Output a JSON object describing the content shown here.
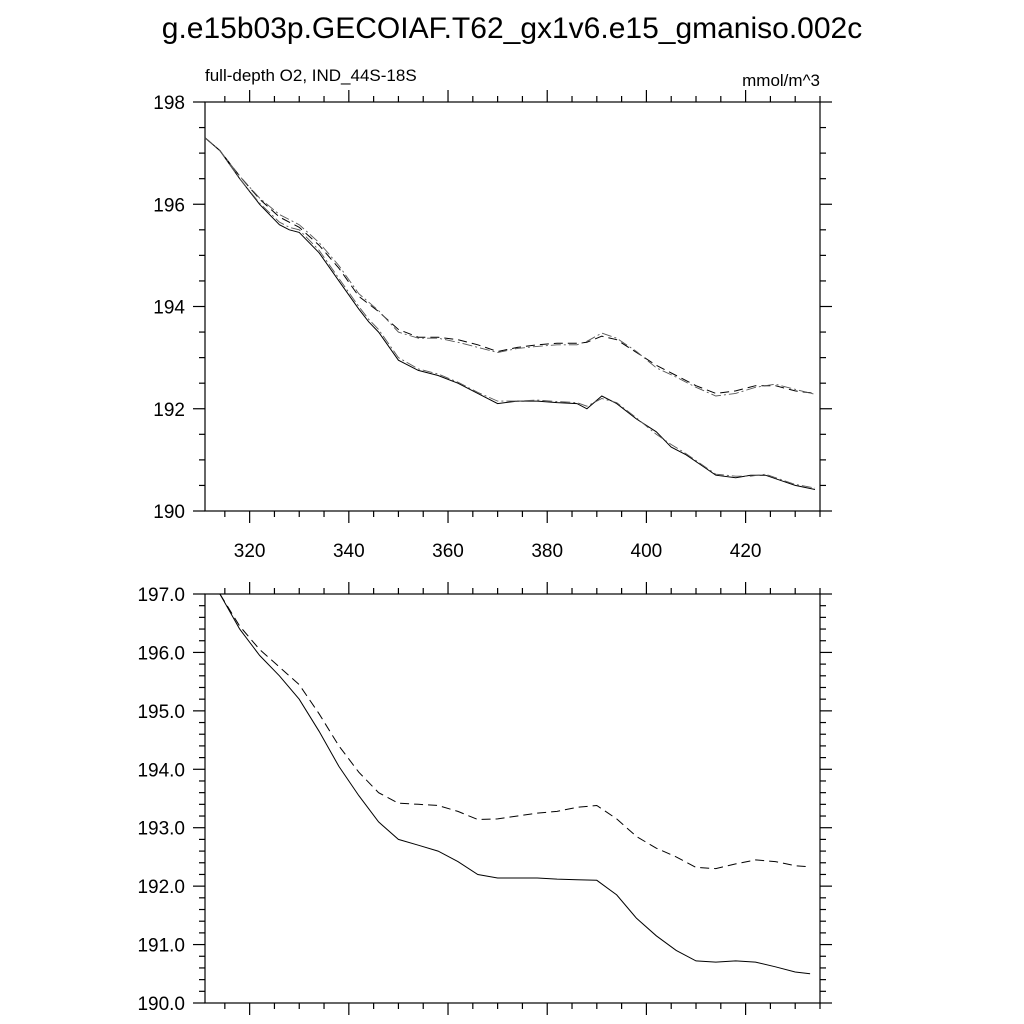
{
  "title": "g.e15b03p.GECOIAF.T62_gx1v6.e15_gmaniso.002c",
  "chart_data": [
    {
      "type": "line",
      "subtitle_left": "full-depth O2, IND_44S-18S",
      "subtitle_right": "mmol/m^3",
      "xlim": [
        311,
        435
      ],
      "ylim": [
        190,
        198
      ],
      "xticks": [
        320,
        340,
        360,
        380,
        400,
        420
      ],
      "xtick_labels": [
        "320",
        "340",
        "360",
        "380",
        "400",
        "420"
      ],
      "yticks": [
        190,
        192,
        194,
        196,
        198
      ],
      "ytick_labels": [
        "190",
        "192",
        "194",
        "196",
        "198"
      ],
      "series": [
        {
          "name": "lower-solid",
          "style": "solid",
          "x": [
            311,
            314,
            318,
            322,
            326,
            328,
            330,
            334,
            338,
            342,
            344,
            346,
            350,
            354,
            358,
            362,
            366,
            370,
            374,
            378,
            382,
            386,
            388,
            391,
            394,
            398,
            402,
            405,
            408,
            411,
            414,
            418,
            421,
            424,
            427,
            430,
            434
          ],
          "y": [
            197.3,
            197.05,
            196.5,
            196.0,
            195.6,
            195.5,
            195.45,
            195.05,
            194.5,
            193.95,
            193.7,
            193.5,
            192.95,
            192.75,
            192.65,
            192.5,
            192.3,
            192.1,
            192.15,
            192.15,
            192.12,
            192.1,
            192.0,
            192.25,
            192.1,
            191.8,
            191.55,
            191.25,
            191.1,
            190.9,
            190.7,
            190.65,
            190.7,
            190.7,
            190.6,
            190.5,
            190.42
          ]
        },
        {
          "name": "lower-dashdot",
          "style": "dashdot",
          "x": [
            311,
            314,
            318,
            322,
            326,
            328,
            330,
            334,
            338,
            342,
            344,
            346,
            350,
            354,
            358,
            362,
            366,
            370,
            374,
            378,
            382,
            386,
            388,
            391,
            394,
            398,
            402,
            405,
            408,
            411,
            414,
            418,
            421,
            424,
            427,
            430,
            434
          ],
          "y": [
            197.3,
            197.05,
            196.5,
            196.02,
            195.65,
            195.55,
            195.5,
            195.1,
            194.55,
            194.0,
            193.75,
            193.55,
            193.0,
            192.78,
            192.68,
            192.52,
            192.32,
            192.15,
            192.15,
            192.17,
            192.14,
            192.12,
            192.05,
            192.2,
            192.12,
            191.82,
            191.5,
            191.3,
            191.12,
            190.92,
            190.72,
            190.68,
            190.68,
            190.72,
            190.62,
            190.52,
            190.45
          ]
        },
        {
          "name": "upper-dashed",
          "style": "dashed",
          "x": [
            311,
            314,
            318,
            322,
            326,
            330,
            334,
            338,
            342,
            346,
            350,
            354,
            358,
            362,
            366,
            370,
            374,
            378,
            382,
            386,
            388,
            391,
            394,
            398,
            402,
            406,
            410,
            414,
            418,
            422,
            426,
            430,
            434
          ],
          "y": [
            197.3,
            197.05,
            196.55,
            196.1,
            195.75,
            195.55,
            195.2,
            194.75,
            194.2,
            193.9,
            193.55,
            193.4,
            193.4,
            193.35,
            193.25,
            193.12,
            193.2,
            193.25,
            193.28,
            193.28,
            193.3,
            193.42,
            193.35,
            193.1,
            192.85,
            192.65,
            192.45,
            192.3,
            192.35,
            192.45,
            192.45,
            192.35,
            192.3
          ]
        },
        {
          "name": "upper-dashdot",
          "style": "dashdot",
          "x": [
            311,
            314,
            318,
            322,
            326,
            330,
            334,
            338,
            342,
            346,
            350,
            354,
            358,
            362,
            366,
            370,
            374,
            378,
            382,
            386,
            388,
            391,
            394,
            398,
            402,
            406,
            410,
            414,
            418,
            422,
            426,
            430,
            434
          ],
          "y": [
            197.3,
            197.05,
            196.55,
            196.12,
            195.8,
            195.6,
            195.25,
            194.8,
            194.25,
            193.92,
            193.5,
            193.38,
            193.38,
            193.3,
            193.2,
            193.1,
            193.18,
            193.22,
            193.25,
            193.25,
            193.32,
            193.48,
            193.38,
            193.12,
            192.8,
            192.62,
            192.42,
            192.25,
            192.3,
            192.42,
            192.48,
            192.38,
            192.28
          ]
        }
      ]
    },
    {
      "type": "line",
      "xlim": [
        311,
        435
      ],
      "ylim": [
        190,
        197
      ],
      "xticks": [
        320,
        340,
        360,
        380,
        400,
        420
      ],
      "xtick_labels": [],
      "yticks": [
        190,
        191,
        192,
        193,
        194,
        195,
        196,
        197
      ],
      "ytick_labels": [
        "190.0",
        "191.0",
        "192.0",
        "193.0",
        "194.0",
        "195.0",
        "196.0",
        "197.0"
      ],
      "series": [
        {
          "name": "smoothed-solid",
          "style": "solid",
          "x": [
            314,
            318,
            322,
            326,
            330,
            334,
            338,
            342,
            346,
            350,
            354,
            358,
            362,
            366,
            370,
            374,
            378,
            382,
            386,
            390,
            394,
            398,
            402,
            406,
            410,
            414,
            418,
            422,
            426,
            430,
            433
          ],
          "y": [
            197.0,
            196.4,
            195.95,
            195.6,
            195.2,
            194.65,
            194.05,
            193.55,
            193.1,
            192.8,
            192.7,
            192.6,
            192.42,
            192.2,
            192.14,
            192.14,
            192.14,
            192.12,
            192.11,
            192.1,
            191.85,
            191.45,
            191.15,
            190.9,
            190.72,
            190.7,
            190.72,
            190.7,
            190.62,
            190.53,
            190.5
          ]
        },
        {
          "name": "smoothed-dashed",
          "style": "dashed",
          "x": [
            314,
            318,
            322,
            326,
            330,
            334,
            338,
            342,
            346,
            350,
            354,
            358,
            362,
            366,
            370,
            374,
            378,
            382,
            386,
            390,
            394,
            398,
            402,
            406,
            410,
            414,
            418,
            422,
            426,
            430,
            433
          ],
          "y": [
            197.0,
            196.45,
            196.05,
            195.75,
            195.45,
            194.95,
            194.4,
            193.95,
            193.6,
            193.42,
            193.4,
            193.38,
            193.28,
            193.14,
            193.15,
            193.2,
            193.25,
            193.28,
            193.35,
            193.38,
            193.15,
            192.85,
            192.65,
            192.5,
            192.32,
            192.3,
            192.38,
            192.45,
            192.42,
            192.35,
            192.33
          ]
        }
      ]
    }
  ]
}
